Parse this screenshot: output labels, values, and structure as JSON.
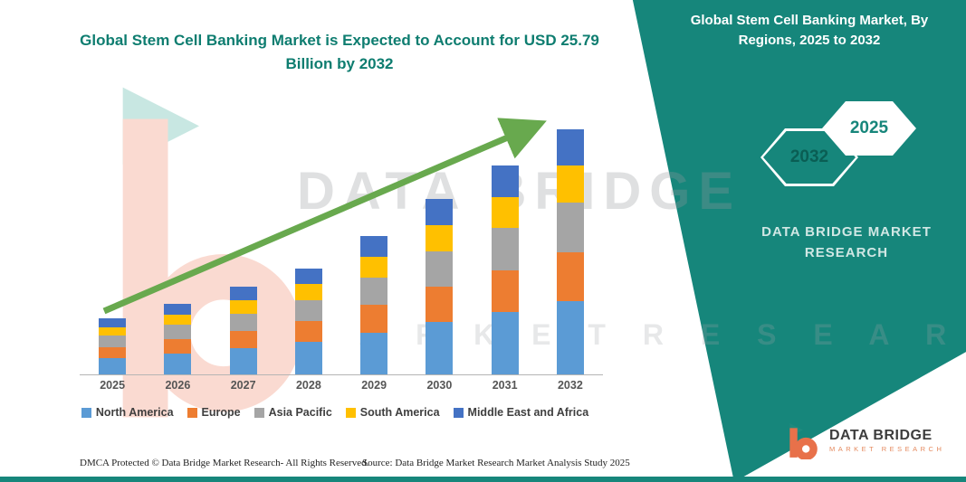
{
  "header": {
    "title": "Global Stem Cell Banking Market is Expected to Account for USD 25.79 Billion by 2032"
  },
  "side_panel": {
    "heading": "Global Stem Cell Banking Market, By Regions, 2025 to 2032",
    "hexagon_back_label": "2032",
    "hexagon_front_label": "2025",
    "brand_text": "DATA BRIDGE MARKET RESEARCH"
  },
  "watermark": {
    "line1": "DATA BRIDGE",
    "line2": "M A R K E T   R E S E A R C H"
  },
  "chart_data": {
    "type": "bar",
    "stacked": true,
    "title": "Global Stem Cell Banking Market is Expected to Account for USD 25.79 Billion by 2032",
    "categories": [
      "2025",
      "2026",
      "2027",
      "2028",
      "2029",
      "2030",
      "2031",
      "2032"
    ],
    "series": [
      {
        "name": "North America",
        "color": "#5B9BD5",
        "values": [
          1.7,
          2.2,
          2.8,
          3.4,
          4.4,
          5.5,
          6.6,
          7.7
        ]
      },
      {
        "name": "Europe",
        "color": "#ED7D31",
        "values": [
          1.2,
          1.5,
          1.8,
          2.2,
          2.9,
          3.7,
          4.4,
          5.2
        ]
      },
      {
        "name": "Asia Pacific",
        "color": "#A5A5A5",
        "values": [
          1.2,
          1.5,
          1.8,
          2.2,
          2.9,
          3.7,
          4.4,
          5.2
        ]
      },
      {
        "name": "South America",
        "color": "#FFC000",
        "values": [
          0.9,
          1.1,
          1.4,
          1.7,
          2.2,
          2.8,
          3.3,
          3.9
        ]
      },
      {
        "name": "Middle East and Africa",
        "color": "#4472C4",
        "values": [
          0.9,
          1.1,
          1.4,
          1.7,
          2.2,
          2.8,
          3.3,
          3.8
        ]
      }
    ],
    "units": "USD Billion",
    "total_2032": 25.79,
    "xlabel": "",
    "ylabel": "",
    "ylim": [
      0,
      28
    ],
    "grid": false,
    "legend_position": "bottom",
    "trend_arrow": true
  },
  "footer": {
    "dmca": "DMCA Protected © Data Bridge Market Research-  All Rights Reserved.",
    "source": "Source: Data Bridge Market Research  Market Analysis Study 2025"
  },
  "logo": {
    "name": "DATA BRIDGE",
    "tagline": "MARKET RESEARCH"
  },
  "colors": {
    "panel_teal": "#16867B",
    "title_teal": "#0E7D70",
    "arrow_green": "#68A94E",
    "logo_orange": "#E8714A",
    "logo_teal": "#1F8A7E"
  }
}
